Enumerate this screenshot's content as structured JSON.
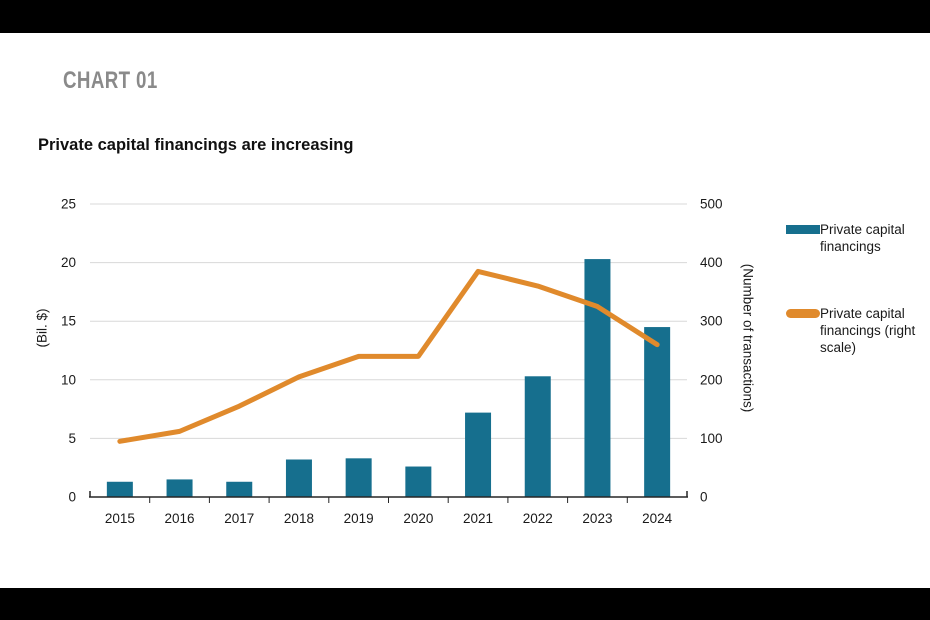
{
  "page": {
    "kicker": "CHART 01",
    "title": "Private capital financings are increasing"
  },
  "chart_data": {
    "type": "bar+line",
    "title": "Private capital financings are increasing",
    "categories": [
      "2015",
      "2016",
      "2017",
      "2018",
      "2019",
      "2020",
      "2021",
      "2022",
      "2023",
      "2024"
    ],
    "series": [
      {
        "name": "Private capital financings",
        "type": "bar",
        "axis": "left",
        "color": "#166F8E",
        "values": [
          1.3,
          1.5,
          1.3,
          3.2,
          3.3,
          2.6,
          7.2,
          10.3,
          20.3,
          14.5
        ]
      },
      {
        "name": "Private capital financings (right scale)",
        "type": "line",
        "axis": "right",
        "color": "#E08A2C",
        "values": [
          95,
          112,
          155,
          205,
          240,
          240,
          385,
          360,
          325,
          260
        ]
      }
    ],
    "left_axis": {
      "label": "(Bil. $)",
      "min": 0,
      "max": 25,
      "ticks": [
        0,
        5,
        10,
        15,
        20,
        25
      ]
    },
    "right_axis": {
      "label": "(Number of transactions)",
      "min": 0,
      "max": 500,
      "ticks": [
        0,
        100,
        200,
        300,
        400,
        500
      ]
    },
    "grid": true,
    "legend_position": "right"
  },
  "colors": {
    "bar": "#166F8E",
    "line": "#E08A2C",
    "grid": "#D8D8D8",
    "axis": "#262626",
    "kicker": "#8A8A8A",
    "band": "#000000"
  }
}
